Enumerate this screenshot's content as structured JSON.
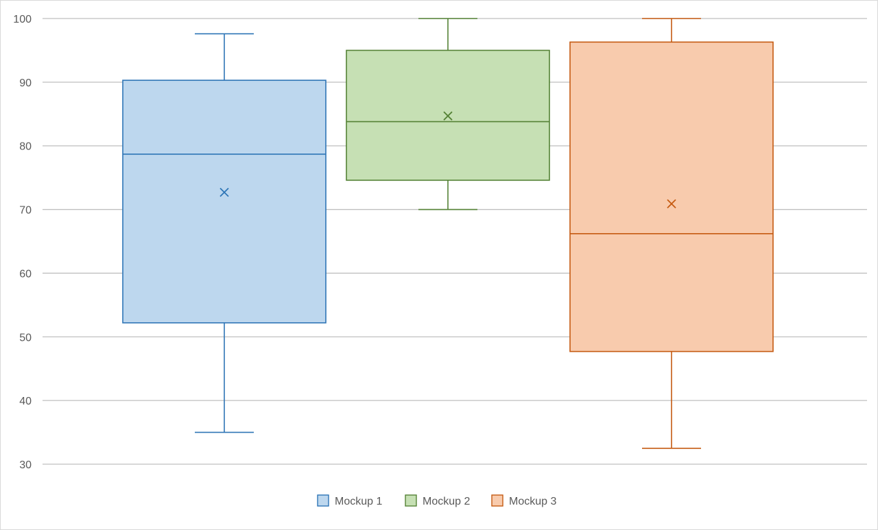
{
  "chart_data": {
    "type": "box",
    "title": "",
    "xlabel": "",
    "ylabel": "",
    "ylim": [
      30,
      100
    ],
    "yticks": [
      30,
      40,
      50,
      60,
      70,
      80,
      90,
      100
    ],
    "grid": true,
    "legend_position": "bottom",
    "series": [
      {
        "name": "Mockup 1",
        "min": 35,
        "q1": 52.2,
        "median": 78.7,
        "q3": 90.3,
        "max": 97.6,
        "mean": 72.7,
        "color": "#2e75b6",
        "fill": "#bdd7ee"
      },
      {
        "name": "Mockup 2",
        "min": 70,
        "q1": 74.6,
        "median": 83.8,
        "q3": 95,
        "max": 100,
        "mean": 84.7,
        "color": "#548235",
        "fill": "#c6e0b4"
      },
      {
        "name": "Mockup 3",
        "min": 32.5,
        "q1": 47.7,
        "median": 66.2,
        "q3": 96.3,
        "max": 100,
        "mean": 70.9,
        "color": "#c55a11",
        "fill": "#f8cbad"
      }
    ]
  }
}
